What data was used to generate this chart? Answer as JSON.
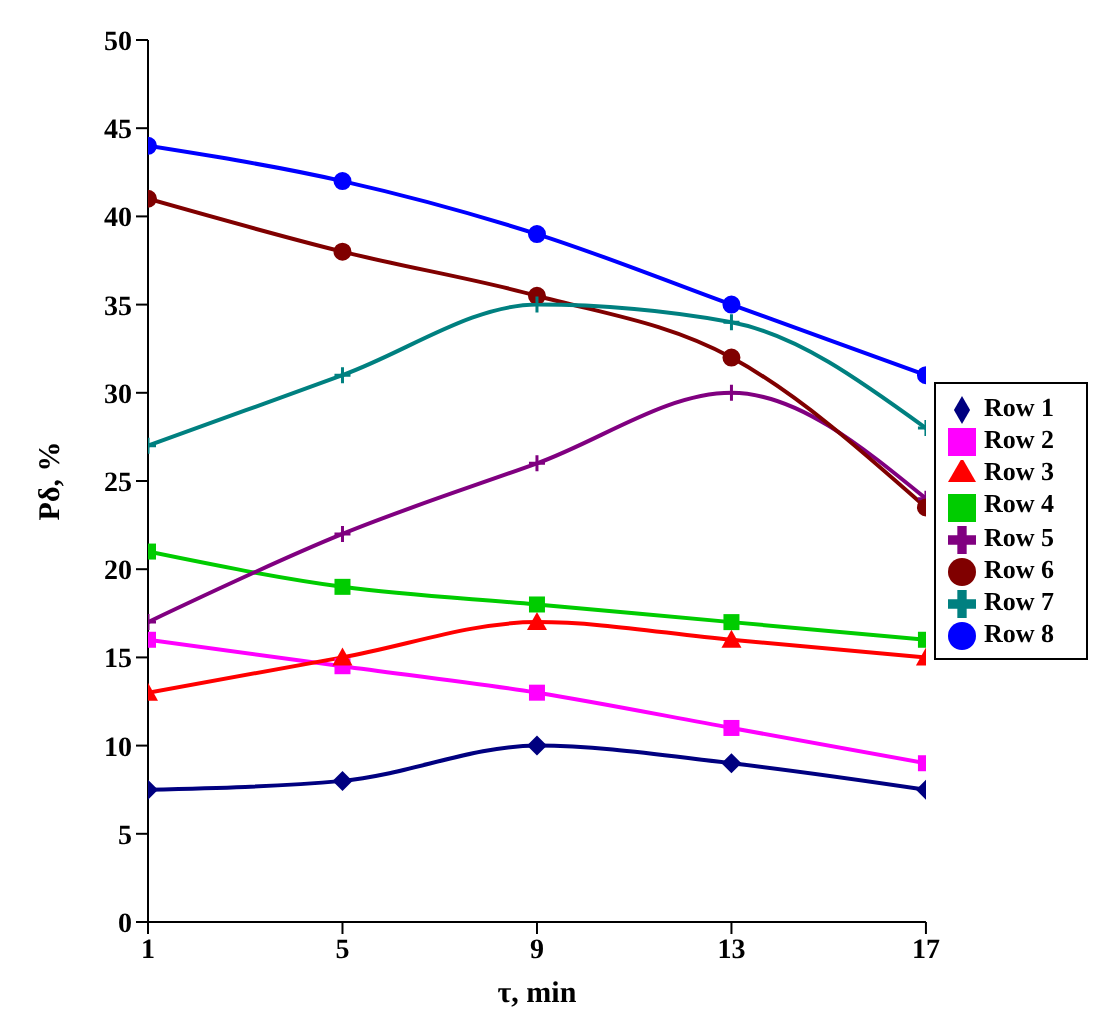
{
  "chart_data": {
    "type": "line",
    "xlabel": "τ, min",
    "ylabel": "Pδ, %",
    "x": [
      1,
      5,
      9,
      13,
      17
    ],
    "xlim": [
      1,
      17
    ],
    "xticks": [
      1,
      5,
      9,
      13,
      17
    ],
    "ylim": [
      0,
      50
    ],
    "yticks": [
      0,
      5,
      10,
      15,
      20,
      25,
      30,
      35,
      40,
      45,
      50
    ],
    "grid": false,
    "legend": "right",
    "series": [
      {
        "name": "Row 1",
        "color": "#000080",
        "marker": "diamond",
        "values": [
          7.5,
          8,
          10,
          9,
          7.5
        ]
      },
      {
        "name": "Row 2",
        "color": "#ff00ff",
        "marker": "square",
        "values": [
          16,
          14.5,
          13,
          11,
          9
        ]
      },
      {
        "name": "Row 3",
        "color": "#ff0000",
        "marker": "triangle",
        "values": [
          13,
          15,
          17,
          16,
          15
        ]
      },
      {
        "name": "Row 4",
        "color": "#00cc00",
        "marker": "square",
        "values": [
          21,
          19,
          18,
          17,
          16
        ]
      },
      {
        "name": "Row 5",
        "color": "#800080",
        "marker": "cross",
        "values": [
          17,
          22,
          26,
          30,
          24
        ]
      },
      {
        "name": "Row 6",
        "color": "#800000",
        "marker": "circle",
        "values": [
          41,
          38,
          35.5,
          32,
          23.5
        ]
      },
      {
        "name": "Row 7",
        "color": "#008080",
        "marker": "cross",
        "values": [
          27,
          31,
          35,
          34,
          28
        ]
      },
      {
        "name": "Row 8",
        "color": "#0000ff",
        "marker": "circle",
        "values": [
          44,
          42,
          39,
          35,
          31
        ]
      }
    ]
  }
}
